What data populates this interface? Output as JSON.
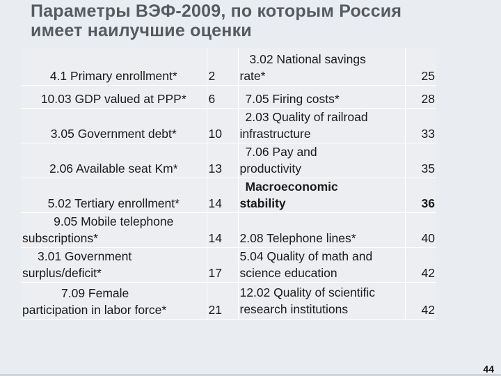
{
  "title": {
    "line1": "Параметры ВЭФ-2009, по которым Россия",
    "line2": "имеет наилучшие оценки"
  },
  "table": {
    "rows": [
      {
        "left_label": [
          "4.1 Primary enrollment*"
        ],
        "left_value": "2",
        "right_label": [
          "3.02 National savings",
          "rate*"
        ],
        "right_value": "25"
      },
      {
        "left_label": [
          "10.03 GDP valued at PPP*"
        ],
        "left_value": "6",
        "right_label": [
          "7.05 Firing costs*"
        ],
        "right_value": "28"
      },
      {
        "left_label": [
          "3.05 Government debt*"
        ],
        "left_value": "10",
        "right_label": [
          "2.03 Quality of railroad",
          "infrastructure"
        ],
        "right_value": "33"
      },
      {
        "left_label": [
          "2.06 Available seat Km*"
        ],
        "left_value": "13",
        "right_label": [
          "7.06 Pay and",
          "productivity"
        ],
        "right_value": "35"
      },
      {
        "left_label": [
          "5.02 Tertiary enrollment*"
        ],
        "left_value": "14",
        "right_label": [
          "Macroeconomic",
          "stability"
        ],
        "right_value": "36"
      },
      {
        "left_label": [
          "9.05 Mobile telephone",
          "subscriptions*"
        ],
        "left_value": "14",
        "right_label": [
          "2.08 Telephone lines*"
        ],
        "right_value": "40"
      },
      {
        "left_label": [
          "3.01 Government",
          "surplus/deficit*"
        ],
        "left_value": "17",
        "right_label": [
          "5.04 Quality of math and",
          "science education"
        ],
        "right_value": "42"
      },
      {
        "left_label": [
          "7.09 Female",
          "participation in labor force*"
        ],
        "left_value": "21",
        "right_label": [
          "12.02 Quality of scientific",
          "research institutions"
        ],
        "right_value": "42"
      }
    ]
  },
  "page_number": "44"
}
